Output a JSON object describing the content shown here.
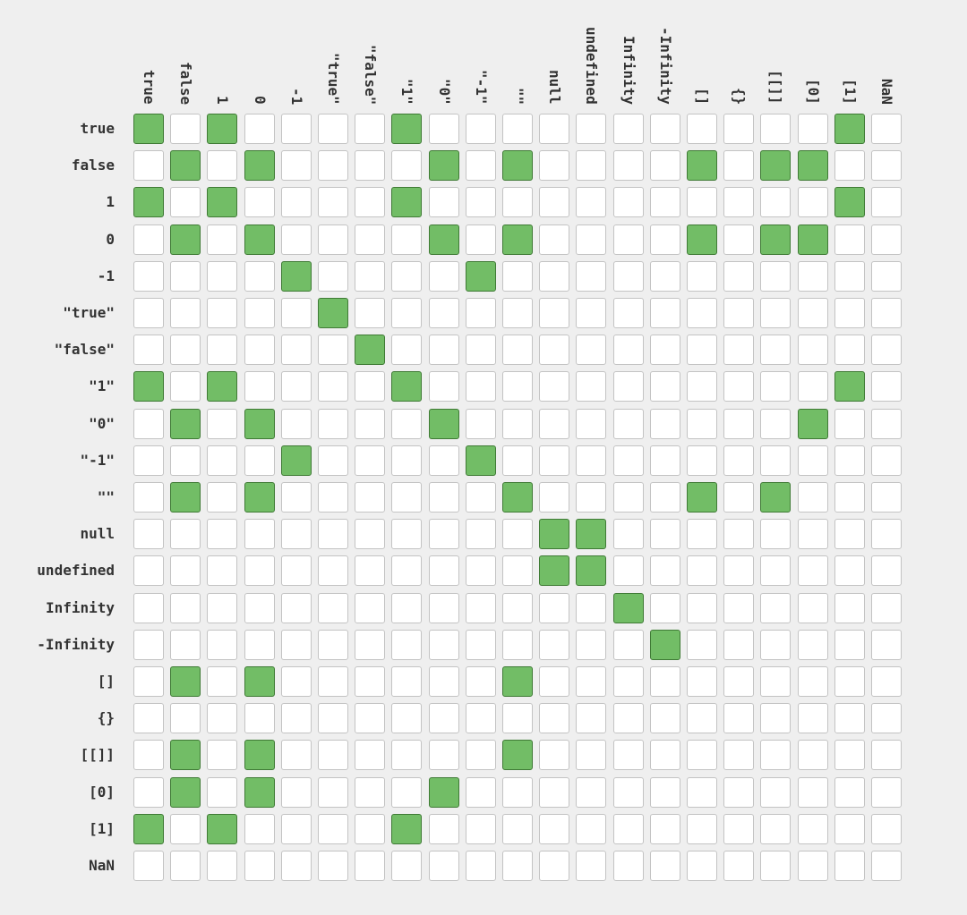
{
  "chart_data": {
    "type": "heatmap",
    "title": "",
    "labels": [
      "true",
      "false",
      "1",
      "0",
      "-1",
      "\"true\"",
      "\"false\"",
      "\"1\"",
      "\"0\"",
      "\"-1\"",
      "\"\"",
      "null",
      "undefined",
      "Infinity",
      "-Infinity",
      "[]",
      "{}",
      "[[]]",
      "[0]",
      "[1]",
      "NaN"
    ],
    "equal_pairs": [
      [
        0,
        0
      ],
      [
        0,
        2
      ],
      [
        0,
        7
      ],
      [
        0,
        19
      ],
      [
        1,
        1
      ],
      [
        1,
        3
      ],
      [
        1,
        8
      ],
      [
        1,
        10
      ],
      [
        1,
        15
      ],
      [
        1,
        17
      ],
      [
        1,
        18
      ],
      [
        2,
        0
      ],
      [
        2,
        2
      ],
      [
        2,
        7
      ],
      [
        2,
        19
      ],
      [
        3,
        1
      ],
      [
        3,
        3
      ],
      [
        3,
        8
      ],
      [
        3,
        10
      ],
      [
        3,
        15
      ],
      [
        3,
        17
      ],
      [
        3,
        18
      ],
      [
        4,
        4
      ],
      [
        4,
        9
      ],
      [
        5,
        5
      ],
      [
        6,
        6
      ],
      [
        7,
        0
      ],
      [
        7,
        2
      ],
      [
        7,
        7
      ],
      [
        7,
        19
      ],
      [
        8,
        1
      ],
      [
        8,
        3
      ],
      [
        8,
        8
      ],
      [
        8,
        18
      ],
      [
        9,
        4
      ],
      [
        9,
        9
      ],
      [
        10,
        1
      ],
      [
        10,
        3
      ],
      [
        10,
        10
      ],
      [
        10,
        15
      ],
      [
        10,
        17
      ],
      [
        11,
        11
      ],
      [
        11,
        12
      ],
      [
        12,
        11
      ],
      [
        12,
        12
      ],
      [
        13,
        13
      ],
      [
        14,
        14
      ],
      [
        15,
        1
      ],
      [
        15,
        3
      ],
      [
        15,
        10
      ],
      [
        17,
        1
      ],
      [
        17,
        3
      ],
      [
        17,
        10
      ],
      [
        18,
        1
      ],
      [
        18,
        3
      ],
      [
        18,
        8
      ],
      [
        19,
        0
      ],
      [
        19,
        2
      ],
      [
        19,
        7
      ]
    ],
    "colors": {
      "equal": "#72bd66",
      "not_equal": "#ffffff"
    },
    "grid": true,
    "legend": "none"
  }
}
